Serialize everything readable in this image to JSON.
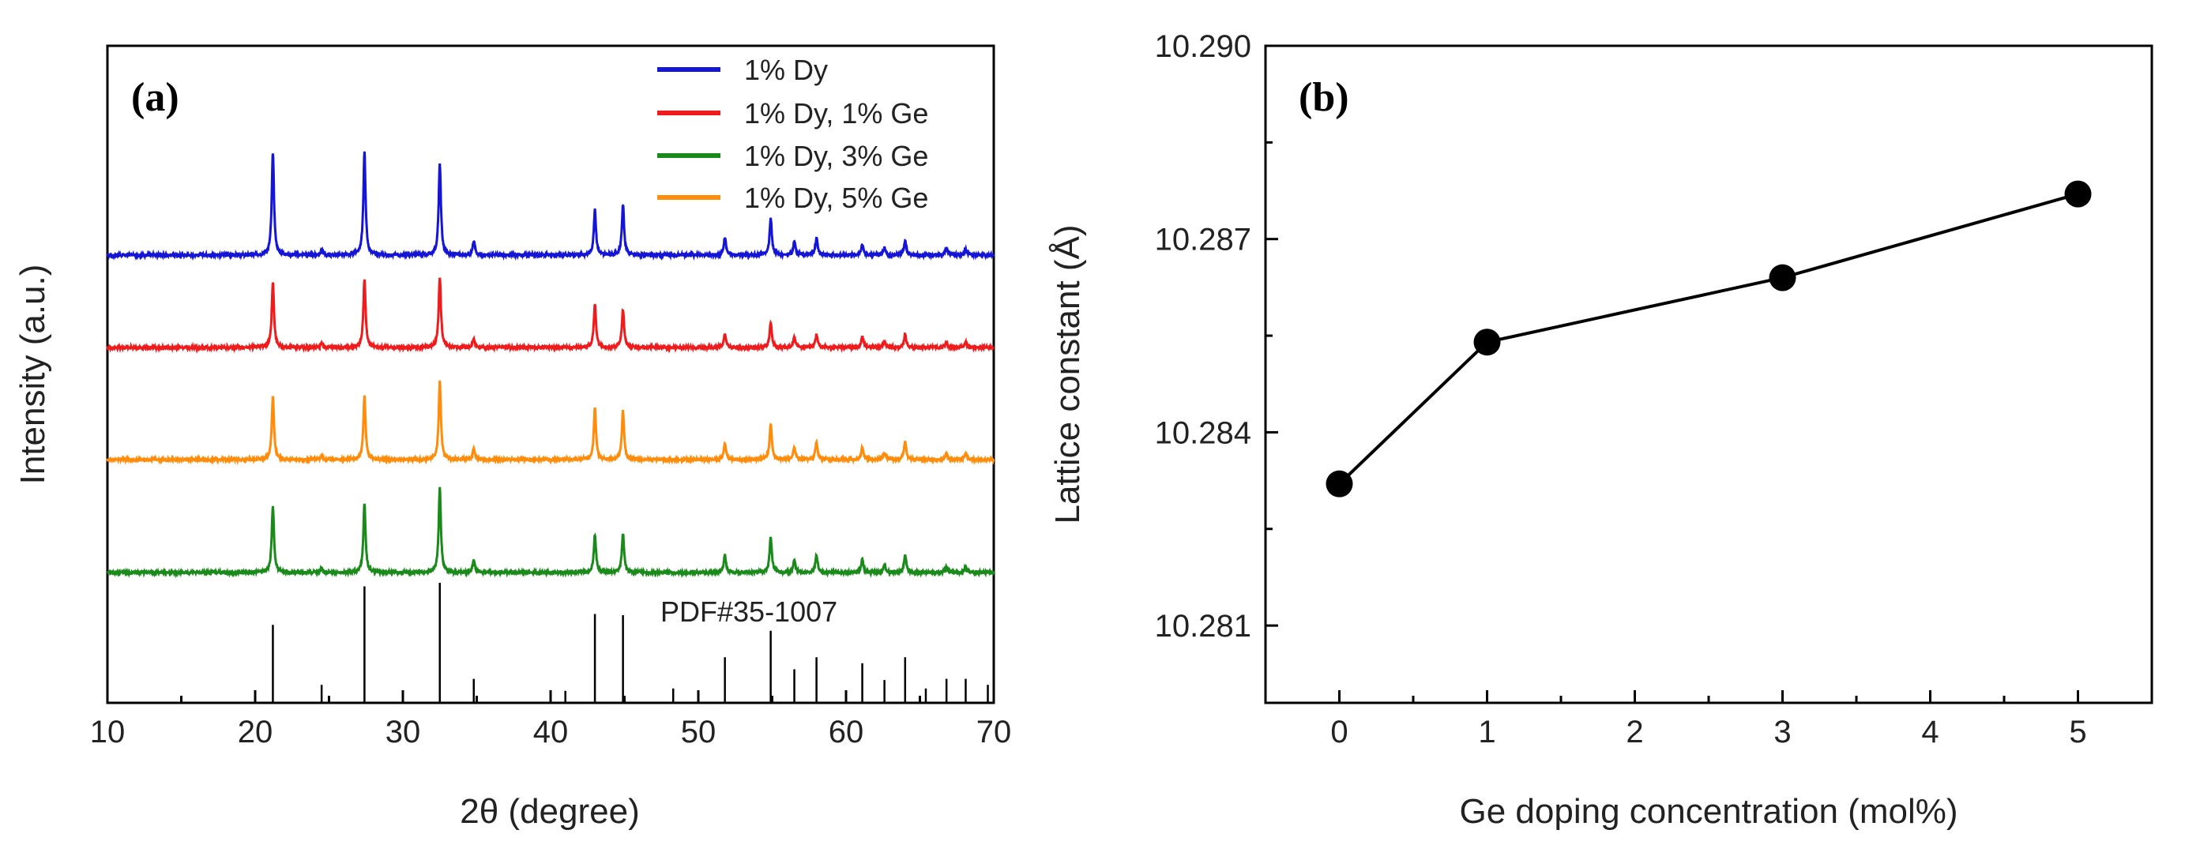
{
  "chart_data": [
    {
      "type": "line",
      "panel_label": "(a)",
      "xlabel": "2θ (degree)",
      "ylabel": "Intensity (a.u.)",
      "xlim": [
        10,
        70
      ],
      "xticks": [
        10,
        20,
        30,
        40,
        50,
        60,
        70
      ],
      "x_minor_step": 5,
      "yticks": [],
      "legend_position": "top-right",
      "stack_order_top_to_bottom": [
        "1% Dy",
        "1% Dy, 1% Ge",
        "1% Dy, 5% Ge",
        "1% Dy, 3% Ge"
      ],
      "series": [
        {
          "name": "1% Dy",
          "color": "#1515d6",
          "peaks": [
            [
              21.2,
              1.0
            ],
            [
              24.5,
              0.05
            ],
            [
              27.4,
              1.0
            ],
            [
              32.5,
              0.9
            ],
            [
              34.8,
              0.14
            ],
            [
              43.0,
              0.44
            ],
            [
              44.9,
              0.49
            ],
            [
              51.8,
              0.17
            ],
            [
              54.9,
              0.36
            ],
            [
              56.5,
              0.13
            ],
            [
              58.0,
              0.17
            ],
            [
              61.1,
              0.1
            ],
            [
              62.6,
              0.07
            ],
            [
              64.0,
              0.14
            ],
            [
              66.8,
              0.07
            ],
            [
              68.1,
              0.06
            ]
          ]
        },
        {
          "name": "1% Dy, 1% Ge",
          "color": "#ee1c1c",
          "peaks": [
            [
              21.2,
              0.64
            ],
            [
              24.5,
              0.04
            ],
            [
              27.4,
              0.67
            ],
            [
              32.5,
              0.69
            ],
            [
              34.8,
              0.08
            ],
            [
              43.0,
              0.42
            ],
            [
              44.9,
              0.37
            ],
            [
              51.8,
              0.13
            ],
            [
              54.9,
              0.24
            ],
            [
              56.5,
              0.1
            ],
            [
              58.0,
              0.12
            ],
            [
              61.1,
              0.11
            ],
            [
              62.6,
              0.06
            ],
            [
              64.0,
              0.13
            ],
            [
              66.8,
              0.05
            ],
            [
              68.1,
              0.05
            ]
          ]
        },
        {
          "name": "1% Dy, 3% Ge",
          "color": "#1a8a1a",
          "peaks": [
            [
              21.2,
              0.65
            ],
            [
              24.5,
              0.04
            ],
            [
              27.4,
              0.67
            ],
            [
              32.5,
              0.82
            ],
            [
              34.8,
              0.13
            ],
            [
              43.0,
              0.37
            ],
            [
              44.9,
              0.38
            ],
            [
              51.8,
              0.17
            ],
            [
              54.9,
              0.35
            ],
            [
              56.5,
              0.12
            ],
            [
              58.0,
              0.17
            ],
            [
              61.1,
              0.13
            ],
            [
              62.6,
              0.07
            ],
            [
              64.0,
              0.17
            ],
            [
              66.8,
              0.06
            ],
            [
              68.1,
              0.05
            ]
          ]
        },
        {
          "name": "1% Dy, 5% Ge",
          "color": "#ff8c0a",
          "peaks": [
            [
              21.2,
              0.73
            ],
            [
              24.5,
              0.04
            ],
            [
              27.4,
              0.73
            ],
            [
              32.5,
              0.9
            ],
            [
              34.8,
              0.12
            ],
            [
              43.0,
              0.59
            ],
            [
              44.9,
              0.56
            ],
            [
              51.8,
              0.18
            ],
            [
              54.9,
              0.41
            ],
            [
              56.5,
              0.14
            ],
            [
              58.0,
              0.2
            ],
            [
              61.1,
              0.14
            ],
            [
              62.6,
              0.08
            ],
            [
              64.0,
              0.21
            ],
            [
              66.8,
              0.07
            ],
            [
              68.1,
              0.07
            ]
          ]
        }
      ],
      "reference": {
        "name": "PDF#35-1007",
        "lines": [
          [
            21.2,
            0.65
          ],
          [
            24.5,
            0.15
          ],
          [
            27.4,
            0.97
          ],
          [
            32.5,
            1.0
          ],
          [
            34.8,
            0.2
          ],
          [
            41.0,
            0.1
          ],
          [
            43.0,
            0.74
          ],
          [
            44.9,
            0.73
          ],
          [
            48.3,
            0.12
          ],
          [
            51.8,
            0.38
          ],
          [
            54.9,
            0.6
          ],
          [
            56.5,
            0.28
          ],
          [
            58.0,
            0.38
          ],
          [
            61.1,
            0.33
          ],
          [
            62.6,
            0.19
          ],
          [
            64.0,
            0.38
          ],
          [
            65.4,
            0.12
          ],
          [
            66.8,
            0.2
          ],
          [
            68.1,
            0.2
          ],
          [
            69.6,
            0.15
          ]
        ]
      }
    },
    {
      "type": "line",
      "panel_label": "(b)",
      "xlabel": "Ge doping concentration (mol%)",
      "ylabel": "Lattice constant (Å)",
      "xlim": [
        -0.5,
        5.5
      ],
      "xticks": [
        0,
        1,
        2,
        3,
        4,
        5
      ],
      "x_minor_step": 0.5,
      "ylim": [
        10.2798,
        10.29
      ],
      "yticks": [
        10.281,
        10.284,
        10.287,
        10.29
      ],
      "ytick_labels": [
        "10.281",
        "10.284",
        "10.287",
        "10.290"
      ],
      "y_minor_step": 0.0015,
      "series": [
        {
          "name": "Lattice constant",
          "color": "#000000",
          "marker": "circle",
          "x": [
            0,
            1,
            3,
            5
          ],
          "y": [
            10.2832,
            10.2854,
            10.2864,
            10.2877
          ]
        }
      ]
    }
  ]
}
